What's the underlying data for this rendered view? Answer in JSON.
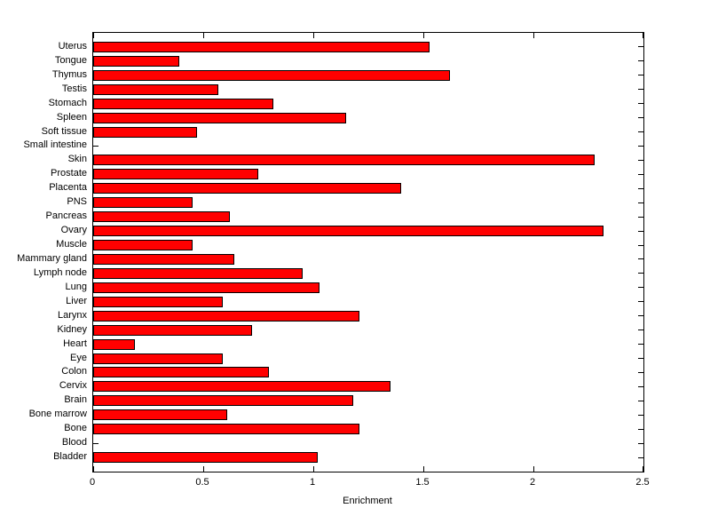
{
  "chart_data": {
    "type": "bar",
    "orientation": "horizontal",
    "title": "",
    "xlabel": "Enrichment",
    "ylabel": "",
    "xlim": [
      0,
      2.5
    ],
    "xticks": [
      0,
      0.5,
      1,
      1.5,
      2,
      2.5
    ],
    "xtick_labels": [
      "0",
      "0.5",
      "1",
      "1.5",
      "2",
      "2.5"
    ],
    "grid": false,
    "legend": false,
    "bar_color": "#ff0000",
    "bar_edge_color": "#000000",
    "categories": [
      "Uterus",
      "Tongue",
      "Thymus",
      "Testis",
      "Stomach",
      "Spleen",
      "Soft tissue",
      "Small intestine",
      "Skin",
      "Prostate",
      "Placenta",
      "PNS",
      "Pancreas",
      "Ovary",
      "Muscle",
      "Mammary gland",
      "Lymph node",
      "Lung",
      "Liver",
      "Larynx",
      "Kidney",
      "Heart",
      "Eye",
      "Colon",
      "Cervix",
      "Brain",
      "Bone marrow",
      "Bone",
      "Blood",
      "Bladder"
    ],
    "values": [
      1.53,
      0.39,
      1.62,
      0.57,
      0.82,
      1.15,
      0.47,
      0,
      2.28,
      0.75,
      1.4,
      0.45,
      0.62,
      2.32,
      0.45,
      0.64,
      0.95,
      1.03,
      0.59,
      1.21,
      0.72,
      0.19,
      0.59,
      0.8,
      1.35,
      1.18,
      0.61,
      1.21,
      0,
      1.02
    ]
  }
}
